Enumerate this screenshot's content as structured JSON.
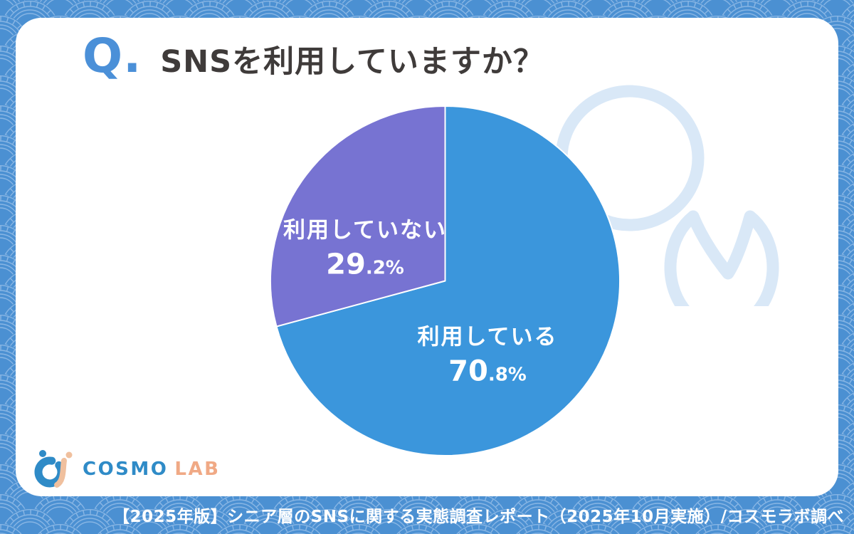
{
  "header": {
    "question_prefix": "Q.",
    "title": "SNSを利用していますか？"
  },
  "chart_data": {
    "type": "pie",
    "title": "SNSを利用していますか？",
    "start_angle_deg": 0,
    "direction": "clockwise",
    "legend": "none",
    "slices": [
      {
        "label": "利用している",
        "value": 70.8,
        "pct_main": "70",
        "pct_sub": ".8%",
        "color": "#3B96DC"
      },
      {
        "label": "利用していない",
        "value": 29.2,
        "pct_main": "29",
        "pct_sub": ".2%",
        "color": "#7773D2"
      }
    ]
  },
  "logo": {
    "brand": "COSMO",
    "suffix": "LAB"
  },
  "footer": {
    "text": "【2025年版】シニア層のSNSに関する実態調査レポート（2025年10月実施）/コスモラボ調べ"
  },
  "colors": {
    "background_blue": "#4B90D2",
    "pattern_line": "#87B5E4",
    "card": "#FFFFFF",
    "accent_q": "#4B90D8",
    "title_text": "#3F3B3A",
    "slice_using": "#3B96DC",
    "slice_not_using": "#7773D2",
    "bubble_outline": "#D9E8F7",
    "logo_blue": "#2F8BC7",
    "logo_orange": "#F0A985",
    "footer_text": "#FFFFFF"
  }
}
